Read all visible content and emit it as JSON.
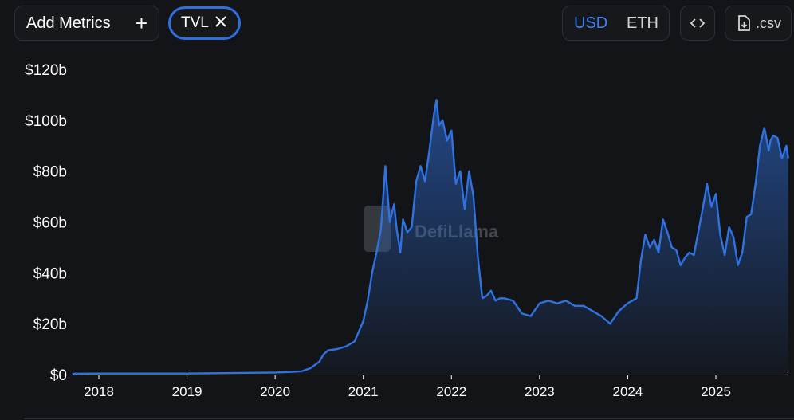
{
  "toolbar": {
    "add_metrics_label": "Add Metrics",
    "tvl_chip_label": "TVL",
    "currency_usd": "USD",
    "currency_eth": "ETH",
    "csv_label": ".csv"
  },
  "watermark": "DefiLlama",
  "colors": {
    "line": "#2f72e0",
    "accent": "#3d83f5",
    "background": "#131417"
  },
  "chart_data": {
    "type": "area",
    "title": "",
    "xlabel": "",
    "ylabel": "",
    "ylim": [
      0,
      120
    ],
    "yticks": [
      0,
      20,
      40,
      60,
      80,
      100,
      120
    ],
    "ytick_labels": [
      "$0",
      "$20b",
      "$40b",
      "$60b",
      "$80b",
      "$100b",
      "$120b"
    ],
    "xlim": [
      2017.7,
      2025.82
    ],
    "xticks": [
      2018,
      2019,
      2020,
      2021,
      2022,
      2023,
      2024,
      2025
    ],
    "xtick_labels": [
      "2018",
      "2019",
      "2020",
      "2021",
      "2022",
      "2023",
      "2024",
      "2025"
    ],
    "grid": false,
    "series": [
      {
        "values_unit": "billions USD",
        "x": [
          2017.7,
          2018.0,
          2018.5,
          2019.0,
          2019.5,
          2020.0,
          2020.15,
          2020.3,
          2020.4,
          2020.5,
          2020.55,
          2020.6,
          2020.7,
          2020.8,
          2020.9,
          2021.0,
          2021.05,
          2021.1,
          2021.15,
          2021.2,
          2021.25,
          2021.3,
          2021.35,
          2021.38,
          2021.42,
          2021.45,
          2021.5,
          2021.55,
          2021.6,
          2021.65,
          2021.7,
          2021.75,
          2021.8,
          2021.83,
          2021.86,
          2021.9,
          2021.95,
          2022.0,
          2022.05,
          2022.1,
          2022.15,
          2022.2,
          2022.25,
          2022.3,
          2022.35,
          2022.4,
          2022.45,
          2022.5,
          2022.55,
          2022.6,
          2022.7,
          2022.8,
          2022.9,
          2023.0,
          2023.1,
          2023.2,
          2023.3,
          2023.4,
          2023.5,
          2023.6,
          2023.7,
          2023.8,
          2023.9,
          2024.0,
          2024.1,
          2024.15,
          2024.2,
          2024.25,
          2024.3,
          2024.35,
          2024.4,
          2024.45,
          2024.5,
          2024.55,
          2024.6,
          2024.65,
          2024.7,
          2024.75,
          2024.8,
          2024.85,
          2024.9,
          2024.95,
          2025.0,
          2025.05,
          2025.1,
          2025.15,
          2025.2,
          2025.25,
          2025.3,
          2025.35,
          2025.4,
          2025.45,
          2025.5,
          2025.55,
          2025.6,
          2025.62,
          2025.65,
          2025.7,
          2025.75,
          2025.8,
          2025.82
        ],
        "values": [
          0.3,
          0.4,
          0.4,
          0.4,
          0.6,
          0.8,
          1.0,
          1.3,
          2.5,
          5,
          8,
          9.5,
          10,
          11,
          13,
          21,
          29,
          40,
          48,
          57,
          82,
          60,
          67,
          57,
          48,
          61,
          56,
          58,
          76,
          82,
          76,
          88,
          102,
          108,
          98,
          100,
          92,
          96,
          75,
          80,
          65,
          80,
          70,
          46,
          30,
          31,
          33,
          29,
          30,
          30,
          29,
          24,
          23,
          28,
          29,
          28,
          29,
          27,
          27,
          25,
          23,
          20,
          25,
          28,
          30,
          45,
          55,
          50,
          53,
          48,
          61,
          56,
          50,
          49,
          43,
          46,
          48,
          47,
          56,
          65,
          75,
          66,
          71,
          55,
          47,
          58,
          54,
          43,
          48,
          62,
          63,
          75,
          90,
          97,
          88,
          92,
          94,
          93,
          85,
          90,
          85
        ]
      }
    ]
  }
}
